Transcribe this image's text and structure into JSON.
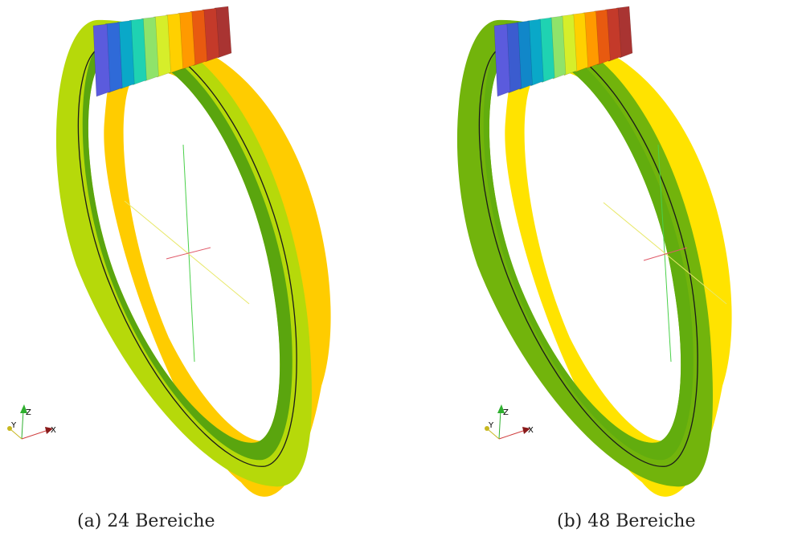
{
  "figures": [
    {
      "id": "a",
      "caption": "(a) 24 Bereiche",
      "colors": {
        "front_ring": "#b6d90a",
        "front_ring_inner": "#5aa50e",
        "back_ring": "#ffcc00",
        "block_colors": [
          "#5b5bdd",
          "#2f6ad8",
          "#0aa8c8",
          "#1fd2b2",
          "#8fe36a",
          "#d6ee2a",
          "#ffd000",
          "#ff9a00",
          "#e85a10",
          "#c43a2a",
          "#a93432"
        ]
      },
      "triad_labels": {
        "z": "Z",
        "y": "Y",
        "x": "X"
      }
    },
    {
      "id": "b",
      "caption": "(b) 48 Bereiche",
      "colors": {
        "front_ring": "#72b40c",
        "front_ring_inner": "#62ad0e",
        "back_ring": "#ffe300",
        "block_colors": [
          "#5b5bdd",
          "#3b5ccf",
          "#1187c9",
          "#0aa8c8",
          "#1fd2b2",
          "#8fe36a",
          "#d6ee2a",
          "#ffd000",
          "#ff9a00",
          "#e85a10",
          "#c43a2a",
          "#a93432"
        ]
      },
      "triad_labels": {
        "z": "Z",
        "y": "Y",
        "x": "X"
      }
    }
  ]
}
